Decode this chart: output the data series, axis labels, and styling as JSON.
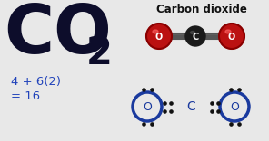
{
  "bg_color": "#e8e8e8",
  "title_top": "Carbon dioxide",
  "formula_lines": [
    "4 + 6(2)",
    "= 16"
  ],
  "formula_color": "#2244bb",
  "lewis_color": "#1a3a9e",
  "dot_color": "#111111",
  "o_ball_color": "#bb1111",
  "o_ball_edge": "#880000",
  "c_ball_color": "#1a1a1a",
  "co2_color": "#0d0d2b",
  "stick_color": "#555555"
}
